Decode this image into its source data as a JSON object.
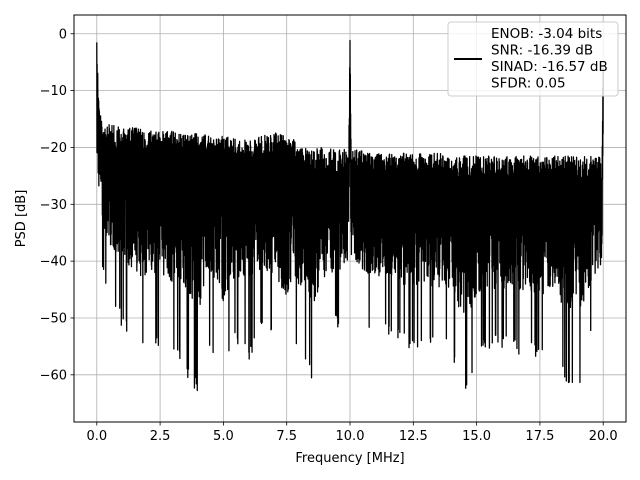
{
  "chart_data": {
    "type": "line",
    "title": "",
    "xlabel": "Frequency [MHz]",
    "ylabel": "PSD [dB]",
    "xlim": [
      -0.9,
      20.9
    ],
    "ylim": [
      -68.3,
      3.3
    ],
    "xticks": [
      0.0,
      2.5,
      5.0,
      7.5,
      10.0,
      12.5,
      15.0,
      17.5,
      20.0
    ],
    "xtick_labels": [
      "0.0",
      "2.5",
      "5.0",
      "7.5",
      "10.0",
      "12.5",
      "15.0",
      "17.5",
      "20.0"
    ],
    "yticks": [
      0,
      -10,
      -20,
      -30,
      -40,
      -50,
      -60
    ],
    "ytick_labels": [
      "0",
      "−10",
      "−20",
      "−30",
      "−40",
      "−50",
      "−60"
    ],
    "grid": true,
    "line_color": "#000000",
    "series": [
      {
        "name": "ENOB: -3.04 bits\nSNR: -16.39 dB\nSINAD: -16.57 dB\nSFDR: 0.05",
        "x": [
          0.0,
          0.05,
          0.1,
          0.15,
          0.2,
          0.3,
          0.5,
          0.75,
          1.0,
          1.5,
          2.0,
          2.5,
          3.0,
          3.5,
          4.0,
          4.5,
          5.0,
          5.5,
          6.0,
          6.5,
          7.0,
          7.5,
          8.0,
          8.5,
          9.0,
          9.5,
          9.95,
          10.0,
          10.05,
          10.5,
          11.0,
          11.5,
          12.0,
          12.5,
          13.0,
          13.5,
          14.0,
          14.5,
          15.0,
          15.5,
          16.0,
          16.5,
          17.0,
          17.5,
          18.0,
          18.5,
          19.0,
          19.5,
          19.95,
          20.0
        ],
        "upper": [
          0.0,
          -8.0,
          -12.0,
          -14.0,
          -15.0,
          -15.5,
          -16.0,
          -16.0,
          -16.5,
          -16.5,
          -17.0,
          -17.0,
          -17.0,
          -17.5,
          -17.5,
          -18.0,
          -18.0,
          -18.5,
          -18.5,
          -18.0,
          -17.5,
          -17.0,
          -19.5,
          -20.0,
          -20.0,
          -20.5,
          -20.0,
          -1.0,
          -20.0,
          -20.5,
          -21.0,
          -21.0,
          -21.0,
          -21.0,
          -21.0,
          -21.0,
          -21.5,
          -21.5,
          -21.5,
          -21.5,
          -21.5,
          -21.5,
          -21.5,
          -21.5,
          -21.5,
          -21.5,
          -21.5,
          -21.5,
          -21.5,
          -2.0
        ],
        "lower": [
          -30.0,
          -34.0,
          -38.0,
          -40.0,
          -42.0,
          -44.0,
          -47.0,
          -50.0,
          -52.0,
          -54.0,
          -56.0,
          -55.0,
          -57.0,
          -60.0,
          -63.5,
          -55.0,
          -61.0,
          -55.0,
          -58.0,
          -52.0,
          -55.0,
          -60.0,
          -56.0,
          -61.5,
          -54.0,
          -52.0,
          -50.0,
          -30.0,
          -50.0,
          -52.0,
          -53.0,
          -53.0,
          -55.0,
          -56.0,
          -55.0,
          -57.0,
          -56.0,
          -64.5,
          -58.0,
          -56.0,
          -56.0,
          -56.0,
          -57.0,
          -58.0,
          -56.0,
          -61.5,
          -63.0,
          -55.0,
          -50.0,
          -30.0
        ]
      }
    ]
  }
}
